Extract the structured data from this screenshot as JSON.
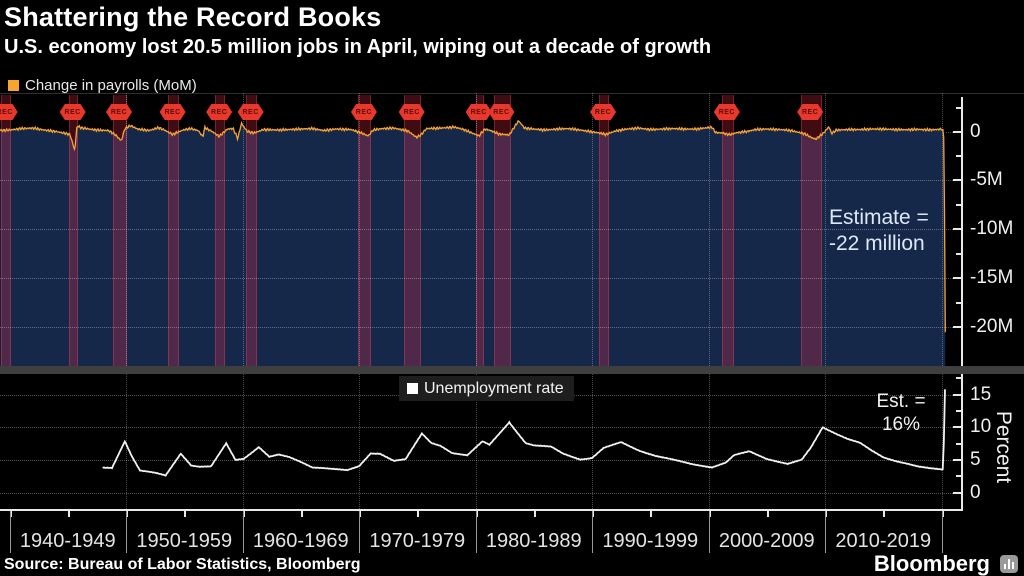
{
  "header": {
    "title": "Shattering the Record Books",
    "subtitle": "U.S. economy lost 20.5 million jobs in April, wiping out a decade of growth"
  },
  "legends": {
    "payrolls": {
      "label": "Change in payrolls (MoM)",
      "swatch_color": "#f7a431"
    },
    "unemployment": {
      "label": "Unemployment rate",
      "swatch_color": "#ffffff"
    }
  },
  "annotations": {
    "payrolls_estimate": "Estimate =\n-22 million",
    "unemployment_estimate": "Est. =\n16%",
    "recession_flag_label": "REC"
  },
  "axes": {
    "payrolls_y_ticks": [
      {
        "value": 0,
        "label": "0"
      },
      {
        "value": -5,
        "label": "-5M"
      },
      {
        "value": -10,
        "label": "-10M"
      },
      {
        "value": -15,
        "label": "-15M"
      },
      {
        "value": -20,
        "label": "-20M"
      }
    ],
    "unemployment_y_ticks": [
      {
        "value": 0,
        "label": "0"
      },
      {
        "value": 5,
        "label": "5"
      },
      {
        "value": 10,
        "label": "10"
      },
      {
        "value": 15,
        "label": "15"
      }
    ],
    "unemployment_axis_label": "Percent",
    "x_decade_labels": [
      "1940-1949",
      "1950-1959",
      "1960-1969",
      "1970-1979",
      "1980-1989",
      "1990-1999",
      "2000-2009",
      "2010-2019"
    ],
    "x_year_start": 1940,
    "x_year_end": 2020
  },
  "footer": {
    "source": "Source: Bureau of Labor Statistics, Bloomberg",
    "brand": "Bloomberg"
  },
  "colors": {
    "payrolls_line": "#f7a431",
    "payrolls_fill": "#16284a",
    "unemployment_line": "#f2f2f2",
    "recession_band": "rgba(235,45,75,0.27)",
    "flag_red": "#e8382b",
    "background": "#000000"
  },
  "chart_data": [
    {
      "type": "area",
      "name": "Change in payrolls (MoM)",
      "unit": "millions of jobs, month-over-month",
      "x_range": [
        1939.2,
        2020.33
      ],
      "ylim": [
        -24,
        3.6
      ],
      "grid": true,
      "noise_amplitude": 0.11,
      "final_value_millions": -20.5,
      "estimate_millions": -22,
      "points": [
        [
          1939.2,
          0.1
        ],
        [
          1940,
          0.15
        ],
        [
          1941,
          0.3
        ],
        [
          1942,
          0.35
        ],
        [
          1943,
          0.15
        ],
        [
          1944,
          0.0
        ],
        [
          1945.2,
          -0.3
        ],
        [
          1945.6,
          -1.95
        ],
        [
          1945.8,
          0.6
        ],
        [
          1946.1,
          0.4
        ],
        [
          1946.8,
          0.25
        ],
        [
          1947.5,
          0.15
        ],
        [
          1948.5,
          0.1
        ],
        [
          1949.1,
          -0.35
        ],
        [
          1949.6,
          -0.95
        ],
        [
          1949.9,
          0.3
        ],
        [
          1950.4,
          0.6
        ],
        [
          1951,
          0.25
        ],
        [
          1952,
          0.1
        ],
        [
          1952.8,
          0.4
        ],
        [
          1953.3,
          0.15
        ],
        [
          1954,
          -0.3
        ],
        [
          1954.9,
          0.15
        ],
        [
          1955.5,
          0.3
        ],
        [
          1956.2,
          0.1
        ],
        [
          1956.6,
          -0.55
        ],
        [
          1956.75,
          0.4
        ],
        [
          1957.4,
          0.0
        ],
        [
          1958,
          -0.5
        ],
        [
          1958.7,
          0.25
        ],
        [
          1959.2,
          0.3
        ],
        [
          1959.6,
          -0.75
        ],
        [
          1959.9,
          0.85
        ],
        [
          1960.4,
          0.0
        ],
        [
          1961,
          -0.15
        ],
        [
          1961.8,
          0.2
        ],
        [
          1963,
          0.15
        ],
        [
          1964,
          0.2
        ],
        [
          1965,
          0.25
        ],
        [
          1966,
          0.3
        ],
        [
          1967,
          0.1
        ],
        [
          1968,
          0.25
        ],
        [
          1969.3,
          0.2
        ],
        [
          1970.1,
          -0.1
        ],
        [
          1970.8,
          -0.45
        ],
        [
          1971.2,
          0.15
        ],
        [
          1972,
          0.3
        ],
        [
          1973,
          0.35
        ],
        [
          1974.2,
          0.05
        ],
        [
          1974.95,
          -0.6
        ],
        [
          1975.3,
          -0.35
        ],
        [
          1975.8,
          0.3
        ],
        [
          1977,
          0.35
        ],
        [
          1978.2,
          0.45
        ],
        [
          1979,
          0.2
        ],
        [
          1980.3,
          -0.45
        ],
        [
          1980.8,
          0.25
        ],
        [
          1981.3,
          0.1
        ],
        [
          1982,
          -0.25
        ],
        [
          1982.9,
          -0.35
        ],
        [
          1983.3,
          0.4
        ],
        [
          1983.7,
          1.1
        ],
        [
          1984.2,
          0.35
        ],
        [
          1985,
          0.25
        ],
        [
          1986,
          0.15
        ],
        [
          1987,
          0.25
        ],
        [
          1988,
          0.3
        ],
        [
          1989,
          0.15
        ],
        [
          1990.6,
          -0.15
        ],
        [
          1991.2,
          -0.3
        ],
        [
          1992,
          0.05
        ],
        [
          1993,
          0.25
        ],
        [
          1994,
          0.35
        ],
        [
          1995,
          0.2
        ],
        [
          1996,
          0.25
        ],
        [
          1997,
          0.3
        ],
        [
          1998,
          0.25
        ],
        [
          1999,
          0.25
        ],
        [
          2000.3,
          0.45
        ],
        [
          2000.6,
          -0.1
        ],
        [
          2001.2,
          -0.15
        ],
        [
          2001.8,
          -0.33
        ],
        [
          2002.5,
          -0.1
        ],
        [
          2003.3,
          0.0
        ],
        [
          2004,
          0.2
        ],
        [
          2005,
          0.25
        ],
        [
          2006,
          0.2
        ],
        [
          2007,
          0.12
        ],
        [
          2008.3,
          -0.25
        ],
        [
          2008.8,
          -0.6
        ],
        [
          2009.2,
          -0.78
        ],
        [
          2009.8,
          -0.25
        ],
        [
          2010.35,
          0.5
        ],
        [
          2010.55,
          -0.2
        ],
        [
          2011,
          0.15
        ],
        [
          2012,
          0.2
        ],
        [
          2013,
          0.2
        ],
        [
          2014,
          0.25
        ],
        [
          2015,
          0.25
        ],
        [
          2016,
          0.2
        ],
        [
          2017,
          0.18
        ],
        [
          2018,
          0.22
        ],
        [
          2019,
          0.16
        ],
        [
          2020.1,
          0.25
        ],
        [
          2020.22,
          -0.9
        ],
        [
          2020.33,
          -20.5
        ]
      ],
      "recessions": [
        [
          1939.25,
          1939.92
        ],
        [
          1945.1,
          1945.75
        ],
        [
          1948.9,
          1949.9
        ],
        [
          1953.6,
          1954.4
        ],
        [
          1957.65,
          1958.35
        ],
        [
          1960.3,
          1961.1
        ],
        [
          1969.95,
          1970.9
        ],
        [
          1973.9,
          1975.15
        ],
        [
          1980.0,
          1980.55
        ],
        [
          1981.55,
          1982.9
        ],
        [
          1990.6,
          1991.3
        ],
        [
          2001.15,
          2002.0
        ],
        [
          2007.9,
          2009.55
        ]
      ]
    },
    {
      "type": "line",
      "name": "Unemployment rate",
      "unit": "percent",
      "x_range": [
        1948,
        2020.3
      ],
      "ylim": [
        -2.5,
        18.1
      ],
      "grid": true,
      "noise_amplitude": 0.07,
      "final_value_percent": 15.8,
      "estimate_percent": 16,
      "points": [
        [
          1948,
          3.8
        ],
        [
          1948.8,
          3.8
        ],
        [
          1949.9,
          7.9
        ],
        [
          1950.5,
          5.6
        ],
        [
          1951.2,
          3.4
        ],
        [
          1952.5,
          3.0
        ],
        [
          1953.4,
          2.6
        ],
        [
          1954.7,
          6.0
        ],
        [
          1955.6,
          4.2
        ],
        [
          1956.3,
          4.0
        ],
        [
          1957.3,
          4.0
        ],
        [
          1958.6,
          7.5
        ],
        [
          1959.4,
          5.0
        ],
        [
          1960.1,
          5.2
        ],
        [
          1961.4,
          7.0
        ],
        [
          1962.3,
          5.5
        ],
        [
          1963.1,
          5.8
        ],
        [
          1964,
          5.4
        ],
        [
          1965,
          4.7
        ],
        [
          1966,
          3.9
        ],
        [
          1967,
          3.8
        ],
        [
          1968,
          3.6
        ],
        [
          1969,
          3.4
        ],
        [
          1970,
          4.0
        ],
        [
          1971,
          6.0
        ],
        [
          1971.8,
          6.0
        ],
        [
          1973,
          4.9
        ],
        [
          1974,
          5.1
        ],
        [
          1975.4,
          9.0
        ],
        [
          1976.2,
          7.6
        ],
        [
          1977,
          7.2
        ],
        [
          1978,
          6.1
        ],
        [
          1979.3,
          5.7
        ],
        [
          1980.6,
          7.8
        ],
        [
          1981.2,
          7.3
        ],
        [
          1982.9,
          10.8
        ],
        [
          1983.5,
          9.4
        ],
        [
          1984.3,
          7.6
        ],
        [
          1985,
          7.2
        ],
        [
          1986.5,
          7.0
        ],
        [
          1987.5,
          6.0
        ],
        [
          1989,
          5.1
        ],
        [
          1990,
          5.3
        ],
        [
          1991,
          6.8
        ],
        [
          1992.5,
          7.7
        ],
        [
          1994,
          6.5
        ],
        [
          1995.5,
          5.6
        ],
        [
          1997,
          5.0
        ],
        [
          1998.5,
          4.4
        ],
        [
          2000.3,
          3.9
        ],
        [
          2001.5,
          4.6
        ],
        [
          2002.2,
          5.7
        ],
        [
          2003.5,
          6.3
        ],
        [
          2005,
          5.2
        ],
        [
          2006.8,
          4.4
        ],
        [
          2008,
          5.0
        ],
        [
          2008.8,
          6.9
        ],
        [
          2009.8,
          10.0
        ],
        [
          2011,
          9.0
        ],
        [
          2012,
          8.2
        ],
        [
          2013,
          7.6
        ],
        [
          2014,
          6.4
        ],
        [
          2015,
          5.4
        ],
        [
          2016,
          4.9
        ],
        [
          2017,
          4.5
        ],
        [
          2018,
          4.0
        ],
        [
          2019,
          3.7
        ],
        [
          2020.15,
          3.5
        ],
        [
          2020.3,
          15.8
        ]
      ]
    }
  ]
}
